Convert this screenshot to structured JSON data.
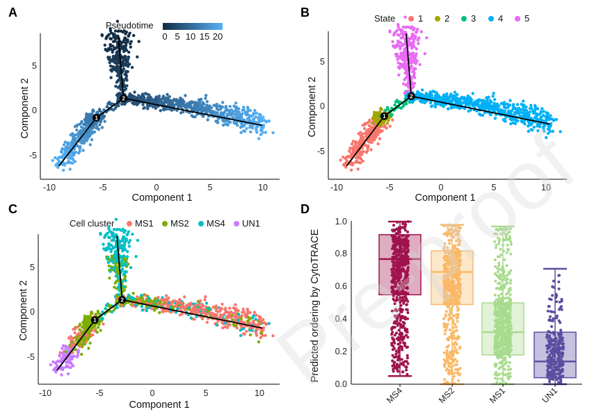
{
  "watermark": "Pre-proof",
  "panels": {
    "A": {
      "letter": "A",
      "legend_title": "Pseudotime",
      "legend_ticks": [
        "0",
        "5",
        "10",
        "15",
        "20"
      ],
      "xlabel": "Component 1",
      "ylabel": "Component 2",
      "x_ticks": [
        "-10",
        "-5",
        "0",
        "5",
        "10"
      ],
      "y_ticks": [
        "-5",
        "0",
        "5"
      ],
      "gradient": [
        "#132B43",
        "#56B1F7"
      ]
    },
    "B": {
      "letter": "B",
      "legend_title": "State",
      "states": [
        {
          "label": "1",
          "color": "#F8766D"
        },
        {
          "label": "2",
          "color": "#A3A500"
        },
        {
          "label": "3",
          "color": "#00BF7D"
        },
        {
          "label": "4",
          "color": "#00B0F6"
        },
        {
          "label": "5",
          "color": "#E76BF3"
        }
      ],
      "xlabel": "Component 1",
      "ylabel": "Component 2",
      "x_ticks": [
        "-10",
        "-5",
        "0",
        "5",
        "10"
      ],
      "y_ticks": [
        "-5",
        "0",
        "5"
      ]
    },
    "C": {
      "letter": "C",
      "legend_title": "Cell cluster",
      "clusters": [
        {
          "label": "MS1",
          "color": "#F8766D"
        },
        {
          "label": "MS2",
          "color": "#7CAE00"
        },
        {
          "label": "MS4",
          "color": "#00BFC4"
        },
        {
          "label": "UN1",
          "color": "#C77CFF"
        }
      ],
      "xlabel": "Component 1",
      "ylabel": "Component 2",
      "x_ticks": [
        "-10",
        "-5",
        "0",
        "5",
        "10"
      ],
      "y_ticks": [
        "-5",
        "0",
        "5"
      ]
    },
    "D": {
      "letter": "D",
      "ylabel": "Predicted ordering by CytoTRACE",
      "y_ticks": [
        "0.0",
        "0.2",
        "0.4",
        "0.6",
        "0.8",
        "1.0"
      ]
    }
  },
  "chart_data": [
    {
      "panel": "A",
      "type": "scatter",
      "title": "",
      "xlabel": "Component 1",
      "ylabel": "Component 2",
      "xlim": [
        -10.5,
        12
      ],
      "ylim": [
        -7.5,
        8.5
      ],
      "color_scale": {
        "name": "Pseudotime",
        "range": [
          0,
          22
        ],
        "ticks": [
          0,
          5,
          10,
          15,
          20
        ]
      },
      "trajectory": [
        [
          -9,
          -6.5
        ],
        [
          -5.4,
          -1.5
        ],
        [
          -2.8,
          0.5
        ],
        [
          10.5,
          -2.3
        ]
      ],
      "branch": [
        [
          -2.8,
          0.5
        ],
        [
          -3.3,
          6.8
        ]
      ],
      "branch_points": [
        {
          "label": "1",
          "x": -5.4,
          "y": -1.5
        },
        {
          "label": "2",
          "x": -2.8,
          "y": 0.5
        }
      ]
    },
    {
      "panel": "B",
      "type": "scatter",
      "title": "",
      "xlabel": "Component 1",
      "ylabel": "Component 2",
      "xlim": [
        -10.5,
        12
      ],
      "ylim": [
        -7.5,
        8.5
      ],
      "legend": [
        "1",
        "2",
        "3",
        "4",
        "5"
      ],
      "legend_title": "State"
    },
    {
      "panel": "C",
      "type": "scatter",
      "title": "",
      "xlabel": "Component 1",
      "ylabel": "Component 2",
      "xlim": [
        -10.5,
        12
      ],
      "ylim": [
        -7.5,
        8.5
      ],
      "legend": [
        "MS1",
        "MS2",
        "MS4",
        "UN1"
      ],
      "legend_title": "Cell cluster"
    },
    {
      "panel": "D",
      "type": "box",
      "title": "",
      "xlabel": "",
      "ylabel": "Predicted ordering by CytoTRACE",
      "ylim": [
        0,
        1
      ],
      "categories": [
        "MS4",
        "MS2",
        "MS1",
        "UN1"
      ],
      "colors": [
        "#A0134D",
        "#F9B968",
        "#A9DB8E",
        "#5A4EA0"
      ],
      "boxes": [
        {
          "name": "MS4",
          "min": 0.05,
          "q1": 0.55,
          "median": 0.77,
          "q3": 0.92,
          "max": 1.0
        },
        {
          "name": "MS2",
          "min": 0.0,
          "q1": 0.49,
          "median": 0.69,
          "q3": 0.82,
          "max": 0.98
        },
        {
          "name": "MS1",
          "min": 0.0,
          "q1": 0.18,
          "median": 0.32,
          "q3": 0.5,
          "max": 0.97
        },
        {
          "name": "UN1",
          "min": 0.0,
          "q1": 0.04,
          "median": 0.14,
          "q3": 0.32,
          "max": 0.71
        }
      ]
    }
  ]
}
